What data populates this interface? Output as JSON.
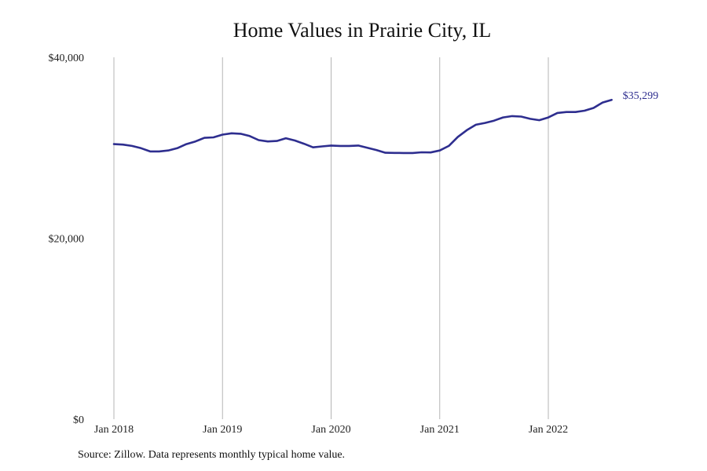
{
  "chart": {
    "title": "Home Values in Prairie City, IL",
    "source": "Source: Zillow. Data represents monthly typical home value."
  },
  "chart_data": {
    "type": "line",
    "title": "Home Values in Prairie City, IL",
    "xlabel": "",
    "ylabel": "",
    "ylim": [
      0,
      40000
    ],
    "y_ticks": [
      0,
      20000,
      40000
    ],
    "y_tick_labels": [
      "$0",
      "$20,000",
      "$40,000"
    ],
    "x_ticks": [
      "2018-01",
      "2019-01",
      "2020-01",
      "2021-01",
      "2022-01"
    ],
    "x_tick_labels": [
      "Jan 2018",
      "Jan 2019",
      "Jan 2020",
      "Jan 2021",
      "Jan 2022"
    ],
    "grid": "vertical",
    "line_color": "#2e2e8f",
    "end_label": "$35,299",
    "series": [
      {
        "x": [
          "2018-01",
          "2018-02",
          "2018-03",
          "2018-04",
          "2018-05",
          "2018-06",
          "2018-07",
          "2018-08",
          "2018-09",
          "2018-10",
          "2018-11",
          "2018-12",
          "2019-01",
          "2019-02",
          "2019-03",
          "2019-04",
          "2019-05",
          "2019-06",
          "2019-07",
          "2019-08",
          "2019-09",
          "2019-10",
          "2019-11",
          "2019-12",
          "2020-01",
          "2020-02",
          "2020-03",
          "2020-04",
          "2020-05",
          "2020-06",
          "2020-07",
          "2020-08",
          "2020-09",
          "2020-10",
          "2020-11",
          "2020-12",
          "2021-01",
          "2021-02",
          "2021-03",
          "2021-04",
          "2021-05",
          "2021-06",
          "2021-07",
          "2021-08",
          "2021-09",
          "2021-10",
          "2021-11",
          "2021-12",
          "2022-01",
          "2022-02",
          "2022-03",
          "2022-04",
          "2022-05",
          "2022-06",
          "2022-07",
          "2022-08"
        ],
        "values": [
          30400,
          30350,
          30200,
          29950,
          29600,
          29600,
          29700,
          29950,
          30400,
          30700,
          31100,
          31150,
          31450,
          31600,
          31550,
          31300,
          30850,
          30700,
          30750,
          31050,
          30800,
          30450,
          30050,
          30150,
          30250,
          30200,
          30200,
          30250,
          30000,
          29750,
          29450,
          29430,
          29420,
          29420,
          29500,
          29480,
          29700,
          30200,
          31200,
          31950,
          32550,
          32750,
          33000,
          33350,
          33500,
          33450,
          33200,
          33050,
          33350,
          33850,
          33950,
          33950,
          34100,
          34400,
          35000,
          35299
        ]
      }
    ]
  }
}
